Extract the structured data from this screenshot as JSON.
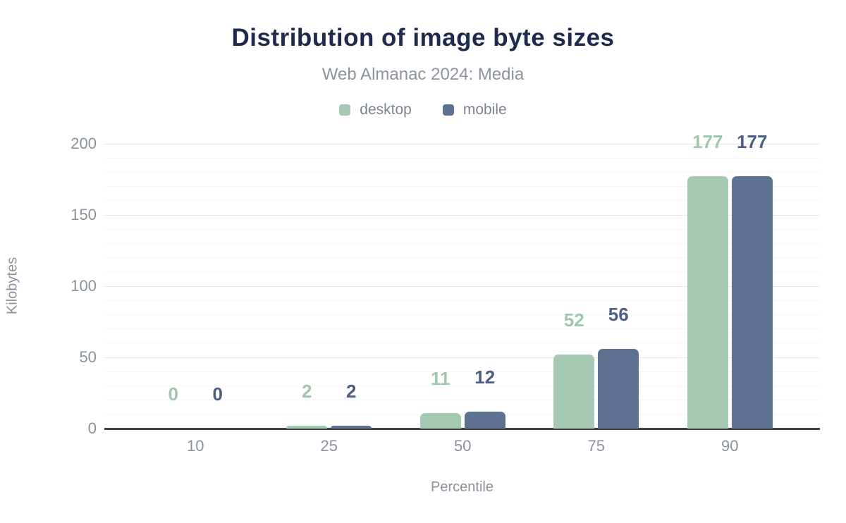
{
  "chart_data": {
    "type": "bar",
    "title": "Distribution of image byte sizes",
    "subtitle": "Web Almanac 2024: Media",
    "xlabel": "Percentile",
    "ylabel": "Kilobytes",
    "categories": [
      "10",
      "25",
      "50",
      "75",
      "90"
    ],
    "series": [
      {
        "name": "desktop",
        "values": [
          0,
          2,
          11,
          52,
          177
        ],
        "color": "#a5c9b3",
        "label_color": "#9fc6ae"
      },
      {
        "name": "mobile",
        "values": [
          0,
          2,
          12,
          56,
          177
        ],
        "color": "#5d7190",
        "label_color": "#4b5f85"
      }
    ],
    "ylim": [
      0,
      200
    ],
    "yticks": [
      0,
      50,
      100,
      150,
      200
    ],
    "minor_grid_step": 10,
    "grid": true,
    "legend_position": "top",
    "data_labels": true
  },
  "colors": {
    "background": "#ffffff",
    "title": "#1e2b4d",
    "subtitle_text": "#8d949e",
    "legend_text": "#7d8591",
    "axis_text": "#8b929d",
    "axis_line": "#3b434f",
    "grid_major": "#e7e7e7",
    "grid_minor": "#f5f5f5"
  }
}
